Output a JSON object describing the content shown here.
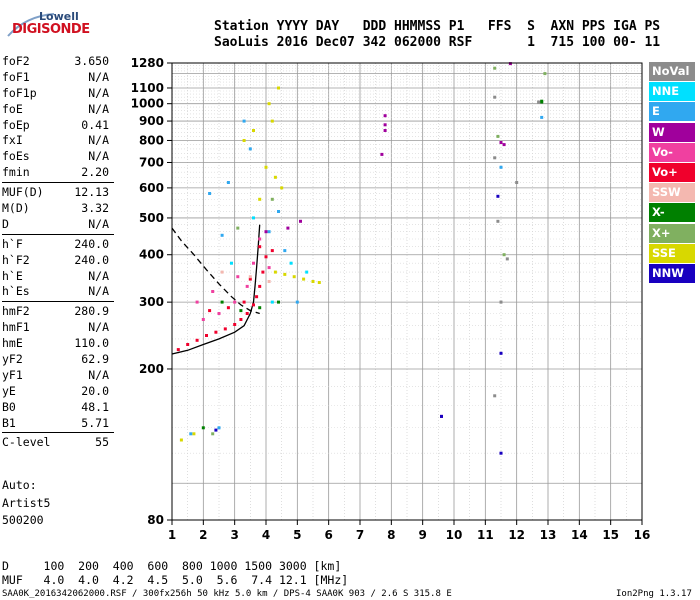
{
  "logo": {
    "line1": "Lowell",
    "line2": "DIGISONDE"
  },
  "header": {
    "line1": "Station YYYY DAY   DDD HHMMSS P1   FFS  S  AXN PPS IGA PS",
    "line2": "SaoLuis 2016 Dec07 342 062000 RSF       1  715 100 00- 11"
  },
  "params": [
    {
      "k": "foF2",
      "v": "3.650"
    },
    {
      "k": "foF1",
      "v": "N/A"
    },
    {
      "k": "foF1p",
      "v": "N/A"
    },
    {
      "k": "foE",
      "v": "N/A"
    },
    {
      "k": "foEp",
      "v": "0.41"
    },
    {
      "k": "fxI",
      "v": "N/A"
    },
    {
      "k": "foEs",
      "v": "N/A"
    },
    {
      "k": "fmin",
      "v": "2.20"
    },
    {
      "k": "MUF(D)",
      "v": "12.13"
    },
    {
      "k": "M(D)",
      "v": "3.32"
    },
    {
      "k": "D",
      "v": "N/A"
    },
    {
      "k": "h`F",
      "v": "240.0"
    },
    {
      "k": "h`F2",
      "v": "240.0"
    },
    {
      "k": "h`E",
      "v": "N/A"
    },
    {
      "k": "h`Es",
      "v": "N/A"
    },
    {
      "k": "hmF2",
      "v": "280.9"
    },
    {
      "k": "hmF1",
      "v": "N/A"
    },
    {
      "k": "hmE",
      "v": "110.0"
    },
    {
      "k": "yF2",
      "v": "62.9"
    },
    {
      "k": "yF1",
      "v": "N/A"
    },
    {
      "k": "yE",
      "v": "20.0"
    },
    {
      "k": "B0",
      "v": "48.1"
    },
    {
      "k": "B1",
      "v": "5.71"
    },
    {
      "k": "C-level",
      "v": "55"
    }
  ],
  "auto": {
    "line1": "Auto:",
    "line2": "Artist5",
    "line3": "500200"
  },
  "legend": [
    {
      "label": "NoVal",
      "color": "#8c8c8c"
    },
    {
      "label": "NNE",
      "color": "#00e0ff"
    },
    {
      "label": "E",
      "color": "#30a8f0"
    },
    {
      "label": "W",
      "color": "#a0009c"
    },
    {
      "label": "Vo-",
      "color": "#f040a0"
    },
    {
      "label": "Vo+",
      "color": "#f0002c"
    },
    {
      "label": "SSW",
      "color": "#f4b8b0"
    },
    {
      "label": "X-",
      "color": "#008000"
    },
    {
      "label": "X+",
      "color": "#80b060"
    },
    {
      "label": "SSE",
      "color": "#d8d800"
    },
    {
      "label": "NNW",
      "color": "#1800c0"
    }
  ],
  "footer": {
    "row1": "D     100  200  400  600  800 1000 1500 3000 [km]",
    "row2": "MUF   4.0  4.0  4.2  4.5  5.0  5.6  7.4 12.1 [MHz]",
    "status": "SAA0K_2016342062000.RSF / 300fx256h 50 kHz 5.0 km / DPS-4 SAA0K 903 / 2.6 S 315.8 E",
    "version": "Ion2Png 1.3.17"
  },
  "chart_data": {
    "type": "scatter",
    "title": "",
    "xlabel": "",
    "ylabel": "",
    "x_ticks": [
      1,
      2,
      3,
      4,
      5,
      6,
      7,
      8,
      9,
      10,
      11,
      12,
      13,
      14,
      15,
      16
    ],
    "y_ticks": [
      80,
      200,
      300,
      400,
      500,
      600,
      700,
      800,
      900,
      1000,
      1100,
      1280
    ],
    "xlim": [
      1,
      16
    ],
    "ylim": [
      80,
      1280
    ],
    "y_scale": "log",
    "grid": true,
    "series": [
      {
        "name": "Vo+",
        "color": "#f0002c",
        "points": [
          [
            1.2,
            225
          ],
          [
            1.5,
            232
          ],
          [
            1.8,
            238
          ],
          [
            2.1,
            245
          ],
          [
            2.4,
            250
          ],
          [
            2.7,
            255
          ],
          [
            3.0,
            262
          ],
          [
            3.2,
            270
          ],
          [
            3.4,
            280
          ],
          [
            3.6,
            295
          ],
          [
            3.7,
            310
          ],
          [
            3.8,
            330
          ],
          [
            3.9,
            360
          ],
          [
            4.0,
            395
          ],
          [
            3.3,
            300
          ],
          [
            2.8,
            290
          ],
          [
            2.2,
            285
          ],
          [
            3.5,
            345
          ],
          [
            4.2,
            410
          ],
          [
            3.8,
            420
          ]
        ]
      },
      {
        "name": "Vo-",
        "color": "#f040a0",
        "points": [
          [
            2.0,
            270
          ],
          [
            2.5,
            280
          ],
          [
            3.0,
            300
          ],
          [
            3.4,
            330
          ],
          [
            3.6,
            380
          ],
          [
            3.8,
            440
          ],
          [
            4.1,
            370
          ],
          [
            2.3,
            320
          ],
          [
            1.8,
            300
          ],
          [
            3.1,
            350
          ]
        ]
      },
      {
        "name": "SSE",
        "color": "#d8d800",
        "points": [
          [
            4.3,
            360
          ],
          [
            4.6,
            355
          ],
          [
            4.9,
            350
          ],
          [
            5.2,
            345
          ],
          [
            5.5,
            340
          ],
          [
            5.7,
            338
          ],
          [
            4.1,
            1000
          ],
          [
            4.4,
            1100
          ],
          [
            4.2,
            900
          ],
          [
            4.0,
            680
          ],
          [
            4.3,
            640
          ],
          [
            3.8,
            560
          ],
          [
            4.5,
            600
          ],
          [
            3.3,
            800
          ],
          [
            3.6,
            850
          ],
          [
            1.3,
            130
          ],
          [
            1.7,
            135
          ]
        ]
      },
      {
        "name": "E",
        "color": "#30a8f0",
        "points": [
          [
            2.2,
            580
          ],
          [
            2.8,
            620
          ],
          [
            3.3,
            900
          ],
          [
            3.5,
            760
          ],
          [
            4.1,
            460
          ],
          [
            4.4,
            520
          ],
          [
            2.6,
            450
          ],
          [
            1.6,
            135
          ],
          [
            2.5,
            140
          ],
          [
            11.5,
            680
          ],
          [
            12.8,
            920
          ],
          [
            5.0,
            300
          ],
          [
            4.6,
            410
          ]
        ]
      },
      {
        "name": "NNE",
        "color": "#00e0ff",
        "points": [
          [
            3.6,
            500
          ],
          [
            4.2,
            300
          ],
          [
            4.8,
            380
          ],
          [
            5.3,
            360
          ],
          [
            2.9,
            380
          ]
        ]
      },
      {
        "name": "W",
        "color": "#a0009c",
        "points": [
          [
            7.8,
            930
          ],
          [
            7.8,
            880
          ],
          [
            7.8,
            850
          ],
          [
            7.7,
            735
          ],
          [
            11.5,
            790
          ],
          [
            11.6,
            780
          ],
          [
            11.8,
            1275
          ],
          [
            9.6,
            150
          ],
          [
            5.1,
            490
          ],
          [
            4.7,
            470
          ],
          [
            4.0,
            460
          ]
        ]
      },
      {
        "name": "X-",
        "color": "#008000",
        "points": [
          [
            3.2,
            285
          ],
          [
            3.8,
            290
          ],
          [
            4.4,
            300
          ],
          [
            2.6,
            300
          ],
          [
            12.8,
            1010
          ],
          [
            12.8,
            1015
          ],
          [
            2.0,
            140
          ]
        ]
      },
      {
        "name": "X+",
        "color": "#80b060",
        "points": [
          [
            11.3,
            1240
          ],
          [
            11.4,
            820
          ],
          [
            11.6,
            400
          ],
          [
            12.9,
            1200
          ],
          [
            3.1,
            470
          ],
          [
            4.2,
            560
          ],
          [
            2.3,
            135
          ]
        ]
      },
      {
        "name": "SSW",
        "color": "#f4b8b0",
        "points": [
          [
            3.5,
            350
          ],
          [
            2.6,
            360
          ],
          [
            4.1,
            340
          ]
        ]
      },
      {
        "name": "NNW",
        "color": "#1800c0",
        "points": [
          [
            11.4,
            570
          ],
          [
            11.5,
            220
          ],
          [
            9.6,
            150
          ],
          [
            11.5,
            120
          ],
          [
            2.4,
            138
          ]
        ]
      },
      {
        "name": "NoVal",
        "color": "#8c8c8c",
        "points": [
          [
            11.3,
            1040
          ],
          [
            11.3,
            720
          ],
          [
            11.4,
            490
          ],
          [
            11.5,
            300
          ],
          [
            12.7,
            1010
          ],
          [
            11.3,
            170
          ],
          [
            11.7,
            390
          ],
          [
            12.0,
            620
          ]
        ]
      }
    ],
    "traces": [
      {
        "style": "solid",
        "points": [
          [
            1.0,
            219
          ],
          [
            1.5,
            224
          ],
          [
            2.0,
            232
          ],
          [
            2.5,
            240
          ],
          [
            3.0,
            250
          ],
          [
            3.3,
            260
          ],
          [
            3.5,
            280
          ],
          [
            3.6,
            300
          ],
          [
            3.65,
            330
          ],
          [
            3.7,
            370
          ],
          [
            3.75,
            420
          ],
          [
            3.8,
            480
          ]
        ]
      },
      {
        "style": "dashed",
        "points": [
          [
            1.0,
            470
          ],
          [
            1.3,
            435
          ],
          [
            1.7,
            400
          ],
          [
            2.1,
            365
          ],
          [
            2.5,
            335
          ],
          [
            2.9,
            310
          ],
          [
            3.2,
            295
          ],
          [
            3.5,
            285
          ],
          [
            3.8,
            280
          ]
        ]
      }
    ]
  }
}
